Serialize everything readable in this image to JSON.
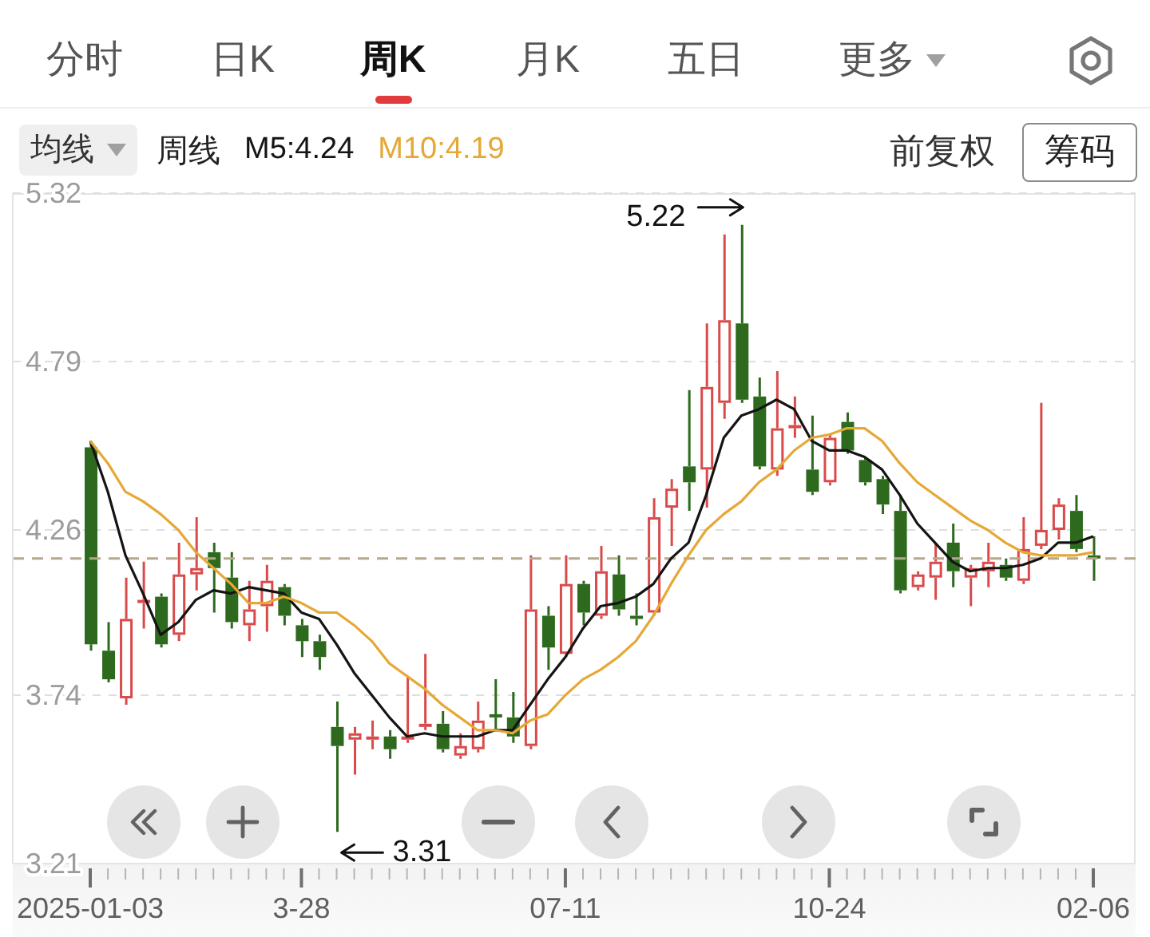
{
  "chart_data": {
    "type": "candlestick",
    "categories": [
      "2025-01-03",
      null,
      null,
      null,
      null,
      null,
      null,
      null,
      null,
      null,
      null,
      null,
      "3-28",
      null,
      null,
      null,
      null,
      null,
      null,
      null,
      null,
      null,
      null,
      null,
      null,
      null,
      null,
      "07-11",
      null,
      null,
      null,
      null,
      null,
      null,
      null,
      null,
      null,
      null,
      null,
      null,
      null,
      null,
      "10-24",
      null,
      null,
      null,
      null,
      null,
      null,
      null,
      null,
      null,
      null,
      null,
      null,
      null,
      null,
      "02-06"
    ],
    "ohlc": [
      [
        4.52,
        4.54,
        3.88,
        3.9
      ],
      [
        3.88,
        3.97,
        3.78,
        3.79
      ],
      [
        3.73,
        4.11,
        3.71,
        3.98
      ],
      [
        4.03,
        4.16,
        3.95,
        4.04
      ],
      [
        4.05,
        4.06,
        3.89,
        3.9
      ],
      [
        3.93,
        4.22,
        3.91,
        4.12
      ],
      [
        4.12,
        4.3,
        4.07,
        4.14
      ],
      [
        4.19,
        4.22,
        4.0,
        4.14
      ],
      [
        4.11,
        4.19,
        3.95,
        3.97
      ],
      [
        3.96,
        4.1,
        3.91,
        4.01
      ],
      [
        4.02,
        4.15,
        3.94,
        4.1
      ],
      [
        4.08,
        4.09,
        3.96,
        3.99
      ],
      [
        3.96,
        3.98,
        3.86,
        3.91
      ],
      [
        3.91,
        3.93,
        3.82,
        3.86
      ],
      [
        3.64,
        3.72,
        3.31,
        3.58
      ],
      [
        3.6,
        3.64,
        3.49,
        3.62
      ],
      [
        3.6,
        3.66,
        3.57,
        3.61
      ],
      [
        3.61,
        3.63,
        3.54,
        3.57
      ],
      [
        3.6,
        3.8,
        3.59,
        3.61
      ],
      [
        3.64,
        3.87,
        3.63,
        3.65
      ],
      [
        3.65,
        3.69,
        3.56,
        3.57
      ],
      [
        3.55,
        3.62,
        3.54,
        3.58
      ],
      [
        3.57,
        3.72,
        3.56,
        3.66
      ],
      [
        3.68,
        3.79,
        3.63,
        3.67
      ],
      [
        3.67,
        3.75,
        3.59,
        3.61
      ],
      [
        3.58,
        4.18,
        3.57,
        4.01
      ],
      [
        3.99,
        4.02,
        3.82,
        3.89
      ],
      [
        3.87,
        4.18,
        3.86,
        4.09
      ],
      [
        4.09,
        4.1,
        3.96,
        4.0
      ],
      [
        3.99,
        4.21,
        3.98,
        4.13
      ],
      [
        4.12,
        4.18,
        3.99,
        4.01
      ],
      [
        3.99,
        4.06,
        3.96,
        3.98
      ],
      [
        4.0,
        4.36,
        3.99,
        4.3
      ],
      [
        4.33,
        4.42,
        4.21,
        4.39
      ],
      [
        4.46,
        4.7,
        4.32,
        4.41
      ],
      [
        4.45,
        4.91,
        4.33,
        4.71
      ],
      [
        4.66,
        5.19,
        4.61,
        4.92
      ],
      [
        4.91,
        5.22,
        4.66,
        4.67
      ],
      [
        4.68,
        4.74,
        4.45,
        4.46
      ],
      [
        4.45,
        4.76,
        4.43,
        4.58
      ],
      [
        4.58,
        4.68,
        4.55,
        4.59
      ],
      [
        4.45,
        4.62,
        4.37,
        4.38
      ],
      [
        4.41,
        4.56,
        4.4,
        4.55
      ],
      [
        4.6,
        4.63,
        4.5,
        4.51
      ],
      [
        4.48,
        4.49,
        4.4,
        4.41
      ],
      [
        4.42,
        4.43,
        4.31,
        4.34
      ],
      [
        4.32,
        4.37,
        4.06,
        4.07
      ],
      [
        4.08,
        4.13,
        4.07,
        4.12
      ],
      [
        4.11,
        4.22,
        4.04,
        4.16
      ],
      [
        4.22,
        4.28,
        4.08,
        4.13
      ],
      [
        4.11,
        4.15,
        4.02,
        4.14
      ],
      [
        4.13,
        4.22,
        4.08,
        4.16
      ],
      [
        4.15,
        4.17,
        4.1,
        4.11
      ],
      [
        4.1,
        4.3,
        4.09,
        4.2
      ],
      [
        4.21,
        4.66,
        4.2,
        4.26
      ],
      [
        4.26,
        4.36,
        4.23,
        4.34
      ],
      [
        4.32,
        4.37,
        4.19,
        4.2
      ],
      [
        4.18,
        4.24,
        4.1,
        4.17
      ]
    ],
    "colors": [
      "#2d6a1e",
      "#2d6a1e",
      "#d94b4b",
      "#d94b4b",
      "#2d6a1e",
      "#d94b4b",
      "#d94b4b",
      "#2d6a1e",
      "#2d6a1e",
      "#d94b4b",
      "#d94b4b",
      "#2d6a1e",
      "#2d6a1e",
      "#2d6a1e",
      "#2d6a1e",
      "#d94b4b",
      "#d94b4b",
      "#2d6a1e",
      "#d94b4b",
      "#d94b4b",
      "#2d6a1e",
      "#d94b4b",
      "#d94b4b",
      "#2d6a1e",
      "#2d6a1e",
      "#d94b4b",
      "#2d6a1e",
      "#d94b4b",
      "#2d6a1e",
      "#d94b4b",
      "#2d6a1e",
      "#2d6a1e",
      "#d94b4b",
      "#d94b4b",
      "#2d6a1e",
      "#d94b4b",
      "#d94b4b",
      "#2d6a1e",
      "#2d6a1e",
      "#d94b4b",
      "#d94b4b",
      "#2d6a1e",
      "#d94b4b",
      "#2d6a1e",
      "#2d6a1e",
      "#2d6a1e",
      "#2d6a1e",
      "#d94b4b",
      "#d94b4b",
      "#2d6a1e",
      "#d94b4b",
      "#d94b4b",
      "#2d6a1e",
      "#d94b4b",
      "#d94b4b",
      "#d94b4b",
      "#2d6a1e",
      "#2d6a1e"
    ],
    "series": [
      {
        "name": "M5:4.24",
        "type": "line",
        "color": "#141414",
        "values": [
          4.54,
          4.38,
          4.18,
          4.06,
          3.93,
          3.97,
          4.04,
          4.07,
          4.06,
          4.08,
          4.07,
          4.06,
          4.0,
          3.98,
          3.9,
          3.81,
          3.74,
          3.67,
          3.61,
          3.62,
          3.61,
          3.61,
          3.61,
          3.63,
          3.63,
          3.71,
          3.79,
          3.86,
          3.95,
          4.02,
          4.03,
          4.05,
          4.09,
          4.17,
          4.22,
          4.37,
          4.55,
          4.62,
          4.64,
          4.67,
          4.64,
          4.54,
          4.51,
          4.51,
          4.49,
          4.45,
          4.37,
          4.28,
          4.22,
          4.16,
          4.13,
          4.14,
          4.14,
          4.15,
          4.17,
          4.22,
          4.22,
          4.24
        ]
      },
      {
        "name": "M10:4.19",
        "type": "line",
        "color": "#e6a835",
        "values": [
          4.54,
          4.47,
          4.38,
          4.35,
          4.31,
          4.26,
          4.19,
          4.14,
          4.09,
          4.03,
          4.03,
          4.05,
          4.03,
          4.0,
          4.0,
          3.96,
          3.91,
          3.84,
          3.8,
          3.76,
          3.71,
          3.67,
          3.63,
          3.63,
          3.62,
          3.66,
          3.68,
          3.74,
          3.79,
          3.82,
          3.86,
          3.91,
          3.99,
          4.09,
          4.18,
          4.26,
          4.31,
          4.35,
          4.41,
          4.45,
          4.51,
          4.55,
          4.56,
          4.58,
          4.58,
          4.54,
          4.47,
          4.41,
          4.37,
          4.33,
          4.29,
          4.26,
          4.22,
          4.19,
          4.18,
          4.18,
          4.18,
          4.19
        ]
      }
    ],
    "ylim": [
      3.21,
      5.32
    ],
    "yticks": [
      5.32,
      4.79,
      4.26,
      3.74,
      3.21
    ],
    "grid": "y",
    "ref_lines": [
      {
        "axis": "y",
        "value": 4.17,
        "color": "#b5a88c",
        "line_style": "dashed"
      }
    ],
    "annotations": [
      "分时",
      "日K",
      "周K",
      "月K",
      "五日",
      "更多",
      "均线",
      "周线",
      "前复权",
      "筹码",
      "5.22",
      "3.31"
    ]
  }
}
